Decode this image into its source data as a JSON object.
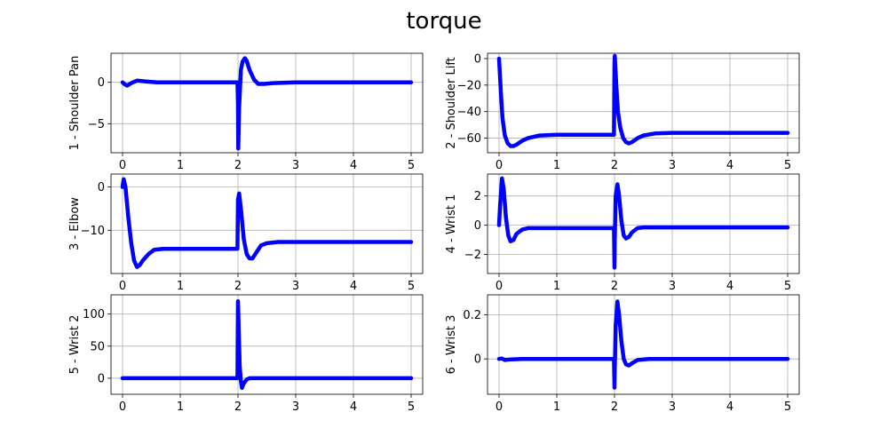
{
  "title": "torque",
  "colors": {
    "line": "#0000ff",
    "grid": "#b0b0b0",
    "frame": "#000000"
  },
  "chart_data": [
    {
      "type": "line",
      "ylabel": "1 - Shoulder Pan",
      "xlim": [
        -0.2,
        5.2
      ],
      "ylim": [
        -8.5,
        3.5
      ],
      "xticks": [
        0,
        1,
        2,
        3,
        4,
        5
      ],
      "yticks": [
        0,
        -5
      ],
      "grid": true,
      "series": [
        {
          "x": [
            0,
            0.03,
            0.08,
            0.15,
            0.25,
            0.4,
            0.6,
            1.0,
            1.5,
            1.99,
            2.0,
            2.005,
            2.02,
            2.05,
            2.08,
            2.12,
            2.15,
            2.2,
            2.28,
            2.35,
            2.45,
            2.6,
            3.0,
            4.0,
            5.0
          ],
          "y": [
            0,
            -0.2,
            -0.4,
            -0.1,
            0.2,
            0.1,
            0,
            0,
            0,
            0,
            -2.5,
            -8,
            -3,
            1.5,
            2.5,
            2.9,
            2.6,
            1.5,
            0.3,
            -0.2,
            -0.2,
            -0.1,
            0,
            0,
            0
          ]
        }
      ]
    },
    {
      "type": "line",
      "ylabel": "2 - Shoulder Lift",
      "xlim": [
        -0.2,
        5.2
      ],
      "ylim": [
        -71,
        4
      ],
      "xticks": [
        0,
        1,
        2,
        3,
        4,
        5
      ],
      "yticks": [
        0,
        -20,
        -40,
        -60
      ],
      "grid": true,
      "series": [
        {
          "x": [
            0,
            0.03,
            0.06,
            0.1,
            0.15,
            0.2,
            0.25,
            0.3,
            0.4,
            0.5,
            0.7,
            1.0,
            1.5,
            1.99,
            2.0,
            2.005,
            2.03,
            2.06,
            2.1,
            2.15,
            2.2,
            2.25,
            2.3,
            2.4,
            2.5,
            2.7,
            3.0,
            4.0,
            5.0
          ],
          "y": [
            0,
            -25,
            -45,
            -58,
            -64,
            -66,
            -66,
            -65,
            -62,
            -60,
            -58,
            -57.5,
            -57.5,
            -57.5,
            -4,
            2,
            -20,
            -40,
            -52,
            -60,
            -63,
            -64,
            -63,
            -60,
            -58,
            -56.5,
            -56,
            -56,
            -56
          ]
        }
      ]
    },
    {
      "type": "line",
      "ylabel": "3 - Elbow",
      "xlim": [
        -0.2,
        5.2
      ],
      "ylim": [
        -20,
        3
      ],
      "xticks": [
        0,
        1,
        2,
        3,
        4,
        5
      ],
      "yticks": [
        0,
        -10
      ],
      "grid": true,
      "series": [
        {
          "x": [
            0,
            0.02,
            0.05,
            0.1,
            0.15,
            0.2,
            0.25,
            0.3,
            0.35,
            0.45,
            0.55,
            0.7,
            1.0,
            1.5,
            1.99,
            2.0,
            2.02,
            2.05,
            2.1,
            2.15,
            2.2,
            2.25,
            2.3,
            2.4,
            2.5,
            2.7,
            3.0,
            4.0,
            5.0
          ],
          "y": [
            0,
            1.8,
            0,
            -7,
            -13,
            -17,
            -18.5,
            -18,
            -17,
            -15.5,
            -14.5,
            -14.3,
            -14.3,
            -14.3,
            -14.3,
            -3,
            -1.5,
            -5,
            -12,
            -15.5,
            -16.5,
            -16.5,
            -15.5,
            -13.5,
            -13,
            -12.7,
            -12.7,
            -12.7,
            -12.7
          ]
        }
      ]
    },
    {
      "type": "line",
      "ylabel": "4 - Wrist 1",
      "xlim": [
        -0.2,
        5.2
      ],
      "ylim": [
        -3.3,
        3.5
      ],
      "xticks": [
        0,
        1,
        2,
        3,
        4,
        5
      ],
      "yticks": [
        2,
        0,
        -2
      ],
      "grid": true,
      "series": [
        {
          "x": [
            0,
            0.02,
            0.05,
            0.08,
            0.12,
            0.16,
            0.2,
            0.25,
            0.3,
            0.4,
            0.5,
            0.7,
            1.0,
            1.5,
            1.99,
            2.0,
            2.005,
            2.02,
            2.05,
            2.08,
            2.12,
            2.16,
            2.2,
            2.25,
            2.3,
            2.4,
            2.5,
            2.7,
            3.0,
            4.0,
            5.0
          ],
          "y": [
            0,
            1.5,
            3.2,
            2.5,
            0.5,
            -0.7,
            -1.1,
            -1.0,
            -0.6,
            -0.3,
            -0.2,
            -0.2,
            -0.2,
            -0.2,
            -0.2,
            -2.9,
            -1,
            2,
            2.8,
            2.0,
            0.3,
            -0.7,
            -0.9,
            -0.8,
            -0.5,
            -0.2,
            -0.15,
            -0.15,
            -0.15,
            -0.15,
            -0.15
          ]
        }
      ]
    },
    {
      "type": "line",
      "ylabel": "5 - Wrist 2",
      "xlim": [
        -0.2,
        5.2
      ],
      "ylim": [
        -25,
        130
      ],
      "xticks": [
        0,
        1,
        2,
        3,
        4,
        5
      ],
      "yticks": [
        0,
        50,
        100
      ],
      "grid": true,
      "series": [
        {
          "x": [
            0,
            0.5,
            1.0,
            1.5,
            1.99,
            2.0,
            2.01,
            2.03,
            2.05,
            2.07,
            2.1,
            2.15,
            2.2,
            2.3,
            2.5,
            3.0,
            4.0,
            5.0
          ],
          "y": [
            0,
            0,
            0,
            0,
            0,
            120,
            90,
            20,
            -5,
            -15,
            -8,
            -2,
            0,
            0,
            0,
            0,
            0,
            0
          ]
        }
      ]
    },
    {
      "type": "line",
      "ylabel": "6 - Wrist 3",
      "xlim": [
        -0.2,
        5.2
      ],
      "ylim": [
        -0.16,
        0.29
      ],
      "xticks": [
        0,
        1,
        2,
        3,
        4,
        5
      ],
      "yticks": [
        0.2,
        0.0
      ],
      "grid": true,
      "series": [
        {
          "x": [
            0,
            0.05,
            0.1,
            0.2,
            0.4,
            1.0,
            1.5,
            1.99,
            2.0,
            2.005,
            2.02,
            2.05,
            2.08,
            2.12,
            2.16,
            2.2,
            2.25,
            2.3,
            2.4,
            2.6,
            3.0,
            4.0,
            5.0
          ],
          "y": [
            0,
            0.002,
            -0.005,
            -0.002,
            0,
            0,
            0,
            0,
            -0.13,
            -0.05,
            0.15,
            0.26,
            0.2,
            0.08,
            0.0,
            -0.025,
            -0.03,
            -0.02,
            -0.005,
            0,
            0,
            0,
            0
          ]
        }
      ]
    }
  ]
}
